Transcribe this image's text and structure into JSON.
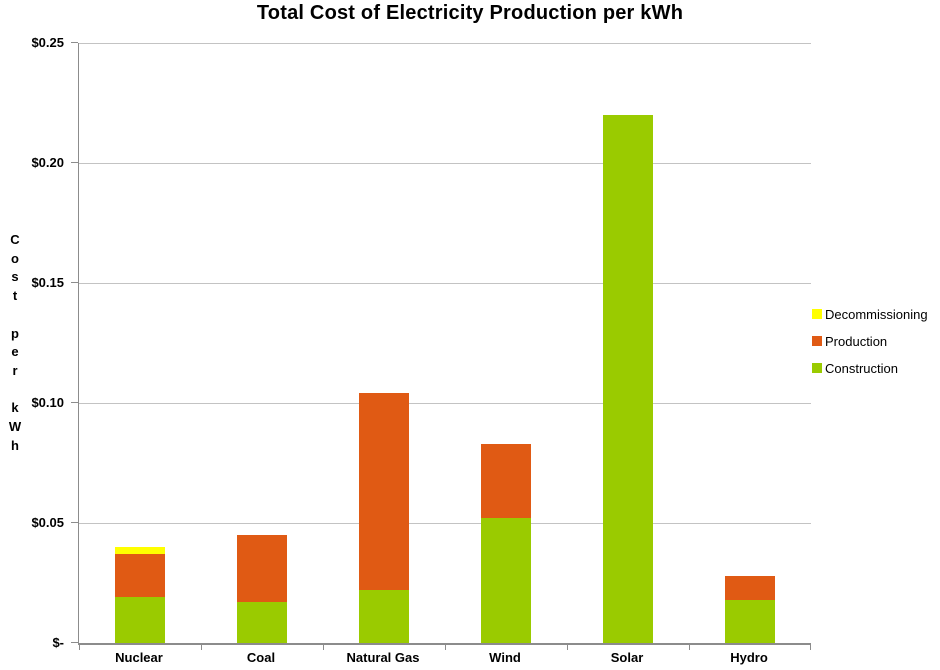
{
  "chart_data": {
    "type": "bar",
    "stacked": true,
    "title": "Total Cost of Electricity Production per kWh",
    "categories": [
      "Nuclear",
      "Coal",
      "Natural Gas",
      "Wind",
      "Solar",
      "Hydro"
    ],
    "series": [
      {
        "name": "Construction",
        "color": "#9ACB00",
        "values": [
          0.019,
          0.017,
          0.022,
          0.052,
          0.22,
          0.018
        ]
      },
      {
        "name": "Production",
        "color": "#E05A14",
        "values": [
          0.018,
          0.028,
          0.082,
          0.031,
          0,
          0.01
        ]
      },
      {
        "name": "Decommissioning",
        "color": "#FFFF00",
        "values": [
          0.003,
          0,
          0,
          0,
          0,
          0
        ]
      }
    ],
    "ylabel": "Cost per kWh",
    "ylabel_stacked": [
      "C",
      "o",
      "s",
      "t",
      "",
      "p",
      "e",
      "r",
      "",
      "k",
      "W",
      "h"
    ],
    "xlabel": "",
    "ylim": [
      0,
      0.25
    ],
    "ytick_step": 0.05,
    "ytick_labels": [
      "$-",
      "$0.05",
      "$0.10",
      "$0.15",
      "$0.20",
      "$0.25"
    ],
    "grid": true,
    "legend_position": "right",
    "legend": [
      {
        "label": "Decommissioning",
        "color": "#FFFF00"
      },
      {
        "label": "Production",
        "color": "#E05A14"
      },
      {
        "label": "Construction",
        "color": "#9ACB00"
      }
    ],
    "colors": {
      "gridline": "#C3C3C3",
      "axis": "#8C8C8C",
      "text": "#000000",
      "background": "#FFFFFF"
    }
  }
}
